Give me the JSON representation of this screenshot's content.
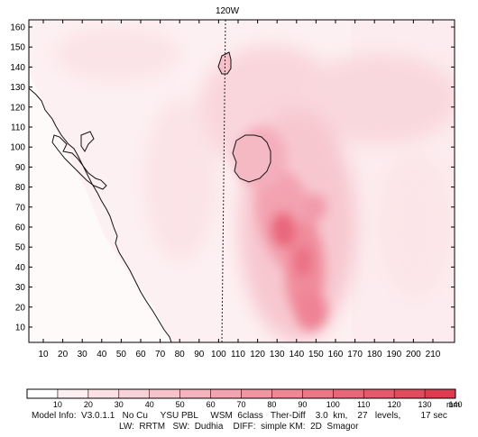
{
  "map": {
    "top_label": "120W",
    "y_ticks": [
      "10",
      "20",
      "30",
      "40",
      "50",
      "60",
      "70",
      "80",
      "90",
      "100",
      "110",
      "120",
      "130",
      "140",
      "150",
      "160"
    ],
    "x_ticks": [
      "10",
      "20",
      "30",
      "40",
      "50",
      "60",
      "70",
      "80",
      "90",
      "100",
      "110",
      "120",
      "130",
      "140",
      "150",
      "160",
      "170",
      "180",
      "190",
      "200",
      "210"
    ],
    "colors": {
      "frame": "#000000",
      "coast": "#111111",
      "meridian": "#222222",
      "background": "#ffffff"
    }
  },
  "colorbar": {
    "labels": [
      "10",
      "20",
      "30",
      "40",
      "50",
      "60",
      "70",
      "80",
      "90",
      "100",
      "110",
      "120",
      "130",
      "140"
    ],
    "unit": "mm",
    "fills": [
      "#ffffff",
      "#fdeef0",
      "#fbe0e4",
      "#f9d2d8",
      "#f7c3cb",
      "#f5b3bd",
      "#f3a4b0",
      "#f095a2",
      "#ee8695",
      "#eb7787",
      "#e86879",
      "#e45a6c",
      "#e14b5e",
      "#dd3c50"
    ]
  },
  "footer": {
    "line1": "Model Info:  V3.0.1.1   No Cu     YSU PBL     WSM  6class   Ther-Diff    3.0  km,    27   levels,        17 sec",
    "line2": "LW:  RRTM   SW:  Dudhia    DIFF:  simple KM:  2D  Smagor"
  }
}
